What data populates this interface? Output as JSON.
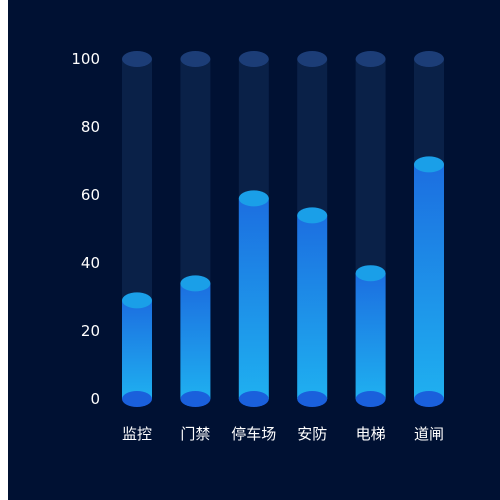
{
  "chart_data": {
    "type": "bar",
    "categories": [
      "监控",
      "门禁",
      "停车场",
      "安防",
      "电梯",
      "道闸"
    ],
    "values": [
      29,
      34,
      59,
      54,
      37,
      69
    ],
    "ylim": [
      0,
      100
    ],
    "yticks": [
      0,
      20,
      40,
      60,
      80,
      100
    ],
    "ytick_labels": [
      "0",
      "20",
      "40",
      "60",
      "80",
      "100"
    ],
    "grid": false,
    "legend": "none",
    "colors": {
      "background": "#001133",
      "track": "#0a2148",
      "track_top": "#1c3d77",
      "bar_top_gradient": "#1c6ee0",
      "bar_bottom_gradient": "#1fb0f0",
      "bar_cap": "#1a9fe8",
      "base_cap": "#1a60dc",
      "text": "#ffffff"
    }
  }
}
